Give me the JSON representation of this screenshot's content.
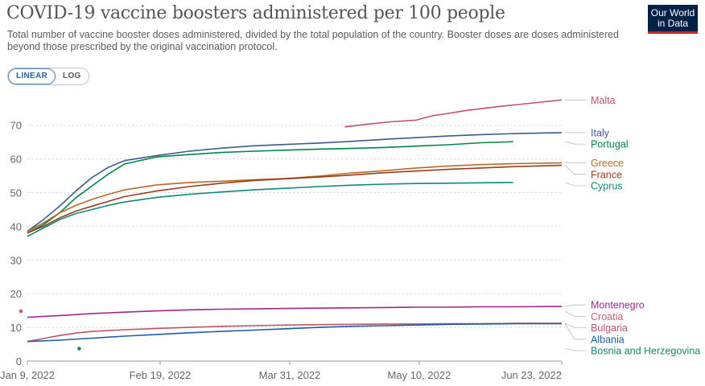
{
  "header": {
    "title": "COVID-19 vaccine boosters administered per 100 people",
    "subtitle": "Total number of vaccine booster doses administered, divided by the total population of the country. Booster doses are doses administered beyond those prescribed by the original vaccination protocol.",
    "logo_line1": "Our World",
    "logo_line2": "in Data"
  },
  "controls": {
    "linear_label": "LINEAR",
    "log_label": "LOG",
    "selected": "LINEAR"
  },
  "chart_data": {
    "type": "line",
    "title": "COVID-19 vaccine boosters administered per 100 people",
    "xlabel": "",
    "ylabel": "",
    "x_ticks": [
      "Jan 9, 2022",
      "Feb 19, 2022",
      "Mar 31, 2022",
      "May 10, 2022",
      "Jun 23, 2022"
    ],
    "x_tick_days": [
      0,
      41,
      81,
      121,
      165
    ],
    "x_range_days": [
      0,
      165
    ],
    "y_ticks": [
      0,
      10,
      20,
      30,
      40,
      50,
      60,
      70
    ],
    "ylim": [
      0,
      78
    ],
    "grid": "horizontal dashed",
    "legend": "line-end labels on the right",
    "series": [
      {
        "name": "Malta",
        "color": "#be5469",
        "points": [
          [
            98,
            69.5
          ],
          [
            105,
            70.3
          ],
          [
            112,
            71.0
          ],
          [
            120,
            71.5
          ],
          [
            125,
            72.8
          ],
          [
            130,
            73.5
          ],
          [
            135,
            74.3
          ],
          [
            145,
            75.5
          ],
          [
            155,
            76.5
          ],
          [
            165,
            77.5
          ]
        ]
      },
      {
        "name": "Italy",
        "color": "#3d5b8c",
        "points": [
          [
            0,
            38.5
          ],
          [
            5,
            42
          ],
          [
            10,
            46
          ],
          [
            15,
            50.5
          ],
          [
            20,
            54.5
          ],
          [
            25,
            57.5
          ],
          [
            30,
            59.5
          ],
          [
            40,
            61
          ],
          [
            50,
            62.3
          ],
          [
            60,
            63.2
          ],
          [
            70,
            63.9
          ],
          [
            80,
            64.3
          ],
          [
            90,
            64.7
          ],
          [
            100,
            65.2
          ],
          [
            110,
            65.8
          ],
          [
            120,
            66.3
          ],
          [
            130,
            66.8
          ],
          [
            140,
            67.2
          ],
          [
            150,
            67.5
          ],
          [
            165,
            67.8
          ]
        ]
      },
      {
        "name": "Portugal",
        "color": "#00854a",
        "points": [
          [
            0,
            38
          ],
          [
            5,
            40.5
          ],
          [
            10,
            44
          ],
          [
            15,
            48.5
          ],
          [
            20,
            52
          ],
          [
            25,
            55.5
          ],
          [
            30,
            58.5
          ],
          [
            40,
            60.6
          ],
          [
            50,
            61.3
          ],
          [
            60,
            61.9
          ],
          [
            70,
            62.3
          ],
          [
            80,
            62.6
          ],
          [
            90,
            62.9
          ],
          [
            100,
            63.1
          ],
          [
            110,
            63.4
          ],
          [
            120,
            63.8
          ],
          [
            130,
            64.2
          ],
          [
            140,
            64.8
          ],
          [
            150,
            65.1
          ]
        ]
      },
      {
        "name": "Greece",
        "color": "#b86b27",
        "points": [
          [
            0,
            38.5
          ],
          [
            5,
            41
          ],
          [
            10,
            44
          ],
          [
            15,
            46.2
          ],
          [
            20,
            48
          ],
          [
            25,
            49.5
          ],
          [
            30,
            50.8
          ],
          [
            40,
            52.3
          ],
          [
            50,
            53.0
          ],
          [
            60,
            53.4
          ],
          [
            70,
            53.8
          ],
          [
            80,
            54.2
          ],
          [
            90,
            54.9
          ],
          [
            100,
            55.8
          ],
          [
            110,
            56.5
          ],
          [
            120,
            57.3
          ],
          [
            130,
            57.9
          ],
          [
            140,
            58.3
          ],
          [
            150,
            58.6
          ],
          [
            165,
            58.8
          ]
        ]
      },
      {
        "name": "France",
        "color": "#9a3c1d",
        "points": [
          [
            0,
            38
          ],
          [
            5,
            40
          ],
          [
            10,
            42.5
          ],
          [
            15,
            44.5
          ],
          [
            20,
            46
          ],
          [
            25,
            47.4
          ],
          [
            30,
            48.8
          ],
          [
            40,
            50.5
          ],
          [
            50,
            51.8
          ],
          [
            60,
            52.8
          ],
          [
            70,
            53.6
          ],
          [
            80,
            54.1
          ],
          [
            90,
            54.6
          ],
          [
            100,
            55.2
          ],
          [
            110,
            55.9
          ],
          [
            120,
            56.4
          ],
          [
            130,
            56.9
          ],
          [
            140,
            57.3
          ],
          [
            150,
            57.7
          ],
          [
            165,
            58.1
          ]
        ]
      },
      {
        "name": "Cyprus",
        "color": "#0c8a7d",
        "points": [
          [
            0,
            37
          ],
          [
            5,
            39.5
          ],
          [
            10,
            42
          ],
          [
            15,
            43.8
          ],
          [
            20,
            45
          ],
          [
            25,
            46.2
          ],
          [
            30,
            47.2
          ],
          [
            40,
            48.6
          ],
          [
            50,
            49.5
          ],
          [
            60,
            50.2
          ],
          [
            70,
            50.8
          ],
          [
            80,
            51.3
          ],
          [
            90,
            51.8
          ],
          [
            100,
            52.2
          ],
          [
            110,
            52.5
          ],
          [
            120,
            52.7
          ],
          [
            130,
            52.8
          ],
          [
            140,
            52.9
          ],
          [
            150,
            53.0
          ]
        ]
      },
      {
        "name": "Montenegro",
        "color": "#a2258b",
        "points": [
          [
            0,
            13
          ],
          [
            10,
            13.5
          ],
          [
            20,
            14.1
          ],
          [
            30,
            14.5
          ],
          [
            40,
            14.9
          ],
          [
            50,
            15.2
          ],
          [
            60,
            15.4
          ],
          [
            70,
            15.5
          ],
          [
            80,
            15.6
          ],
          [
            90,
            15.7
          ],
          [
            100,
            15.8
          ],
          [
            110,
            15.9
          ],
          [
            120,
            16.0
          ],
          [
            130,
            16.0
          ],
          [
            140,
            16.1
          ],
          [
            150,
            16.1
          ],
          [
            165,
            16.2
          ]
        ]
      },
      {
        "name": "Croatia",
        "color": "#d3566f",
        "points": [
          [
            -2,
            14.8
          ]
        ]
      },
      {
        "name": "Bulgaria",
        "color": "#be5469",
        "points": [
          [
            0,
            5.8
          ],
          [
            5,
            6.7
          ],
          [
            10,
            7.6
          ],
          [
            15,
            8.3
          ],
          [
            20,
            8.8
          ],
          [
            30,
            9.3
          ],
          [
            40,
            9.7
          ],
          [
            50,
            10.0
          ],
          [
            60,
            10.3
          ],
          [
            70,
            10.5
          ],
          [
            80,
            10.7
          ],
          [
            90,
            10.8
          ],
          [
            100,
            10.9
          ],
          [
            110,
            11.0
          ],
          [
            120,
            11.0
          ],
          [
            130,
            11.1
          ],
          [
            140,
            11.1
          ],
          [
            150,
            11.2
          ],
          [
            165,
            11.2
          ]
        ]
      },
      {
        "name": "Albania",
        "color": "#1a5ea8",
        "points": [
          [
            0,
            5.8
          ],
          [
            10,
            6.2
          ],
          [
            20,
            6.8
          ],
          [
            30,
            7.4
          ],
          [
            40,
            7.9
          ],
          [
            50,
            8.4
          ],
          [
            60,
            8.8
          ],
          [
            70,
            9.2
          ],
          [
            80,
            9.6
          ],
          [
            90,
            10.0
          ],
          [
            100,
            10.3
          ],
          [
            110,
            10.5
          ],
          [
            120,
            10.7
          ],
          [
            130,
            10.9
          ],
          [
            140,
            11.0
          ],
          [
            150,
            11.1
          ],
          [
            165,
            11.1
          ]
        ]
      },
      {
        "name": "Bosnia and Herzegovina",
        "color": "#16876d",
        "points": [
          [
            16,
            3.7
          ]
        ]
      }
    ]
  }
}
